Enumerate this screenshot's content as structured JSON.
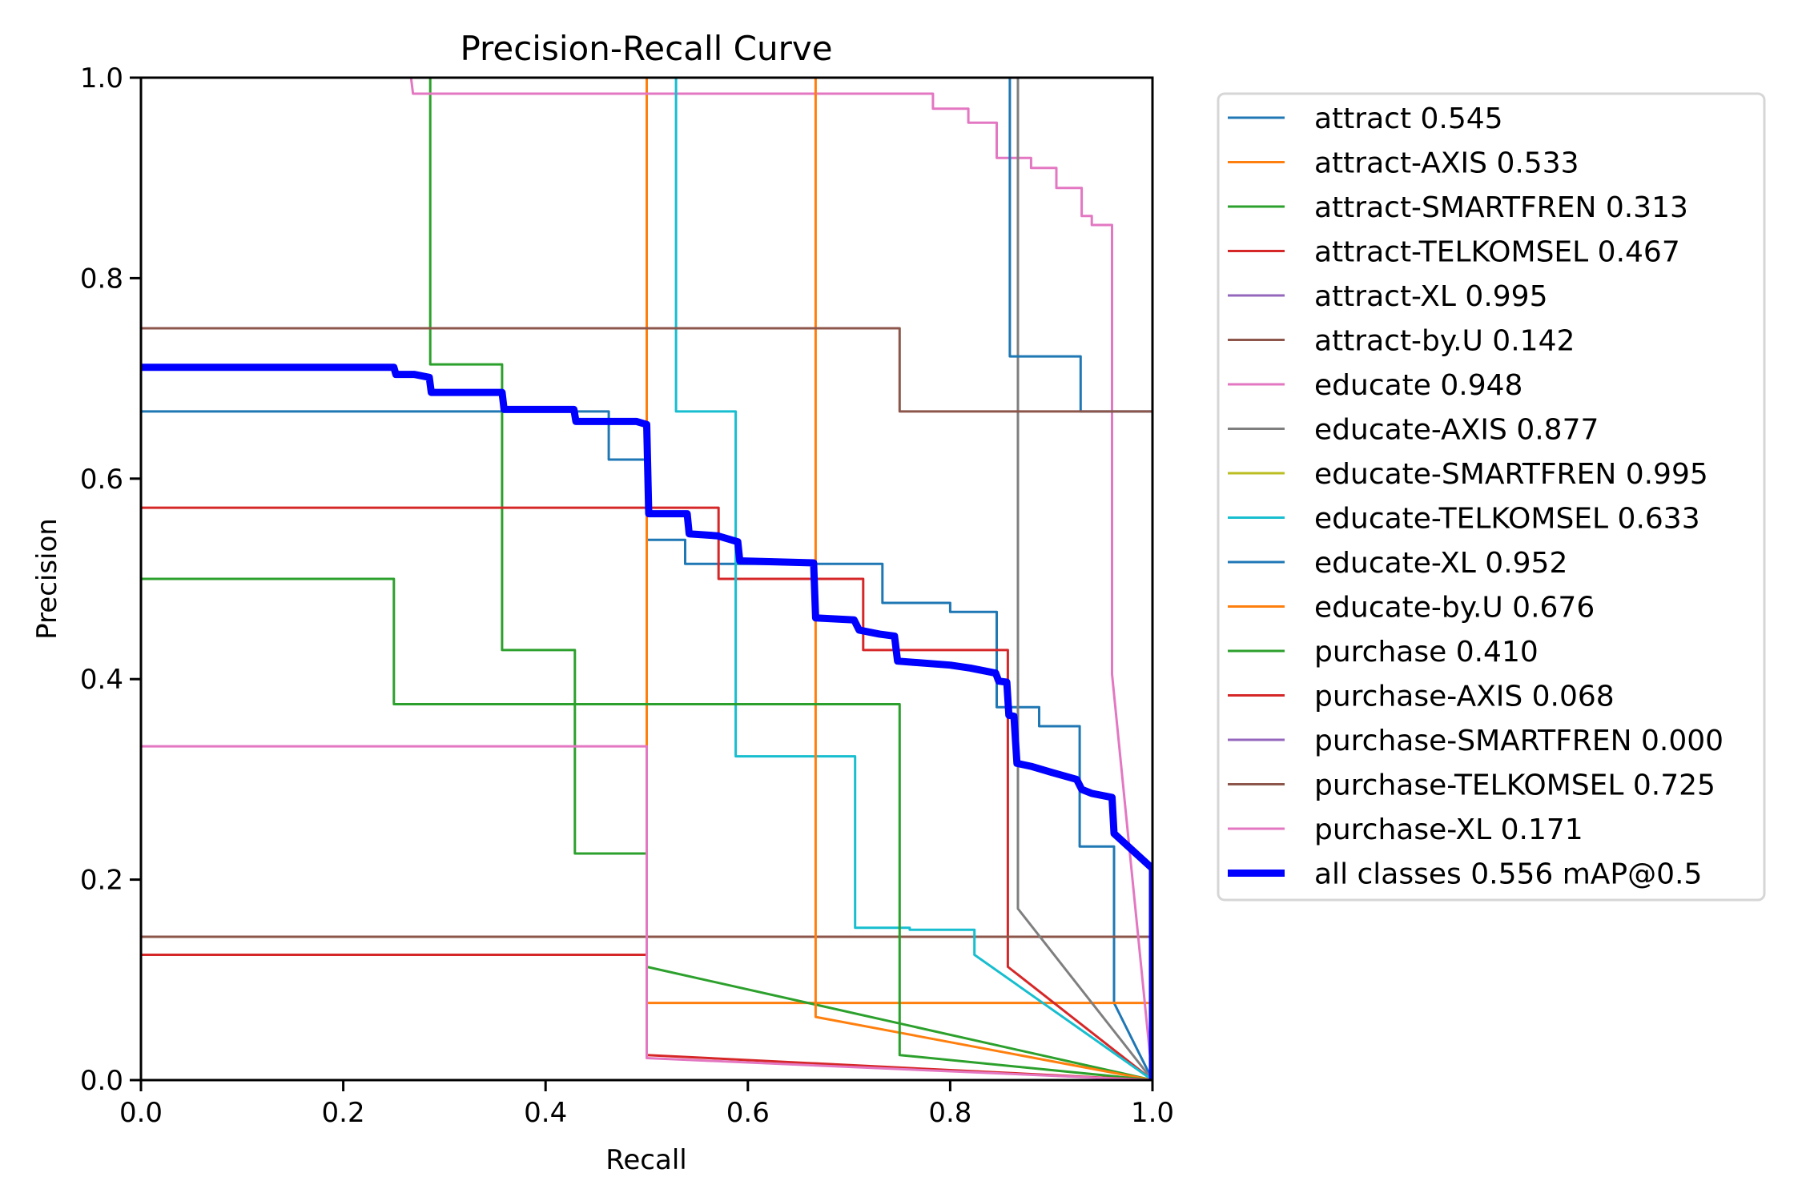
{
  "chart_data": {
    "type": "line",
    "title": "Precision-Recall Curve",
    "xlabel": "Recall",
    "ylabel": "Precision",
    "xlim": [
      0,
      1
    ],
    "ylim": [
      0,
      1
    ],
    "xticks": [
      "0.0",
      "0.2",
      "0.4",
      "0.6",
      "0.8",
      "1.0"
    ],
    "yticks": [
      "0.0",
      "0.2",
      "0.4",
      "0.6",
      "0.8",
      "1.0"
    ],
    "grid": false,
    "legend_position": "outside-top-right",
    "series": [
      {
        "name": "attract",
        "ap": "0.545",
        "label": "attract 0.545",
        "color": "#1f77b4",
        "width": "thin",
        "points": [
          [
            0,
            0.667
          ],
          [
            0.4625,
            0.667
          ],
          [
            0.4625,
            0.619
          ],
          [
            0.5,
            0.619
          ],
          [
            0.5,
            0.539
          ],
          [
            0.538,
            0.539
          ],
          [
            0.538,
            0.515
          ],
          [
            0.733,
            0.515
          ],
          [
            0.733,
            0.476
          ],
          [
            0.8,
            0.476
          ],
          [
            0.8,
            0.467
          ],
          [
            0.846,
            0.467
          ],
          [
            0.846,
            0.372
          ],
          [
            0.888,
            0.372
          ],
          [
            0.888,
            0.353
          ],
          [
            0.928,
            0.353
          ],
          [
            0.928,
            0.233
          ],
          [
            0.962,
            0.233
          ],
          [
            0.962,
            0.077
          ],
          [
            1,
            0.0
          ]
        ]
      },
      {
        "name": "attract-AXIS",
        "ap": "0.533",
        "label": "attract-AXIS 0.533",
        "color": "#ff7f0e",
        "width": "thin",
        "points": [
          [
            0.5,
            1.0
          ],
          [
            0.5,
            0.077
          ],
          [
            1,
            0.077
          ],
          [
            1,
            0.0
          ]
        ]
      },
      {
        "name": "attract-SMARTFREN",
        "ap": "0.313",
        "label": "attract-SMARTFREN 0.313",
        "color": "#2ca02c",
        "width": "thin",
        "points": [
          [
            0.286,
            1.0
          ],
          [
            0.286,
            0.714
          ],
          [
            0.357,
            0.714
          ],
          [
            0.357,
            0.429
          ],
          [
            0.429,
            0.429
          ],
          [
            0.429,
            0.226
          ],
          [
            0.5,
            0.226
          ],
          [
            0.5,
            0.113
          ],
          [
            1,
            0.0
          ]
        ]
      },
      {
        "name": "attract-TELKOMSEL",
        "ap": "0.467",
        "label": "attract-TELKOMSEL 0.467",
        "color": "#d62728",
        "width": "thin",
        "points": [
          [
            0,
            0.571
          ],
          [
            0.571,
            0.571
          ],
          [
            0.571,
            0.5
          ],
          [
            0.714,
            0.5
          ],
          [
            0.714,
            0.429
          ],
          [
            0.857,
            0.429
          ],
          [
            0.857,
            0.113
          ],
          [
            1,
            0.0
          ]
        ]
      },
      {
        "name": "attract-XL",
        "ap": "0.995",
        "label": "attract-XL 0.995",
        "color": "#9467bd",
        "width": "thin",
        "points": [
          [
            0,
            1.0
          ],
          [
            1,
            1.0
          ],
          [
            1,
            0.0
          ]
        ]
      },
      {
        "name": "attract-by.U",
        "ap": "0.142",
        "label": "attract-by.U 0.142",
        "color": "#8c564b",
        "width": "thin",
        "points": [
          [
            0,
            0.143
          ],
          [
            1,
            0.143
          ],
          [
            1,
            0.0
          ]
        ]
      },
      {
        "name": "educate",
        "ap": "0.948",
        "label": "educate 0.948",
        "color": "#e377c2",
        "width": "thin",
        "points": [
          [
            0.267,
            1.0
          ],
          [
            0.269,
            0.984
          ],
          [
            0.783,
            0.984
          ],
          [
            0.783,
            0.969
          ],
          [
            0.818,
            0.969
          ],
          [
            0.818,
            0.955
          ],
          [
            0.846,
            0.955
          ],
          [
            0.846,
            0.92
          ],
          [
            0.88,
            0.92
          ],
          [
            0.88,
            0.91
          ],
          [
            0.905,
            0.91
          ],
          [
            0.905,
            0.89
          ],
          [
            0.93,
            0.89
          ],
          [
            0.93,
            0.862
          ],
          [
            0.94,
            0.862
          ],
          [
            0.94,
            0.853
          ],
          [
            0.96,
            0.853
          ],
          [
            0.96,
            0.405
          ],
          [
            1,
            0.0
          ]
        ]
      },
      {
        "name": "educate-AXIS",
        "ap": "0.877",
        "label": "educate-AXIS 0.877",
        "color": "#7f7f7f",
        "width": "thin",
        "points": [
          [
            0.867,
            1.0
          ],
          [
            0.867,
            0.171
          ],
          [
            1,
            0.0
          ]
        ]
      },
      {
        "name": "educate-SMARTFREN",
        "ap": "0.995",
        "label": "educate-SMARTFREN 0.995",
        "color": "#bcbd22",
        "width": "thin",
        "points": [
          [
            0,
            1.0
          ],
          [
            1,
            1.0
          ],
          [
            1,
            0.0
          ]
        ]
      },
      {
        "name": "educate-TELKOMSEL",
        "ap": "0.633",
        "label": "educate-TELKOMSEL 0.633",
        "color": "#17becf",
        "width": "thin",
        "points": [
          [
            0.529,
            1.0
          ],
          [
            0.529,
            0.667
          ],
          [
            0.588,
            0.667
          ],
          [
            0.588,
            0.323
          ],
          [
            0.706,
            0.323
          ],
          [
            0.706,
            0.152
          ],
          [
            0.76,
            0.152
          ],
          [
            0.76,
            0.15
          ],
          [
            0.824,
            0.15
          ],
          [
            0.824,
            0.125
          ],
          [
            1,
            0.0
          ]
        ]
      },
      {
        "name": "educate-XL",
        "ap": "0.952",
        "label": "educate-XL 0.952",
        "color": "#1f77b4",
        "width": "thin",
        "points": [
          [
            0.859,
            1.0
          ],
          [
            0.859,
            0.722
          ],
          [
            0.929,
            0.722
          ],
          [
            0.929,
            0.667
          ],
          [
            1,
            0.667
          ],
          [
            1,
            0.0
          ]
        ]
      },
      {
        "name": "educate-by.U",
        "ap": "0.676",
        "label": "educate-by.U 0.676",
        "color": "#ff7f0e",
        "width": "thin",
        "points": [
          [
            0.667,
            1.0
          ],
          [
            0.667,
            0.063
          ],
          [
            1,
            0.0
          ]
        ]
      },
      {
        "name": "purchase",
        "ap": "0.410",
        "label": "purchase 0.410",
        "color": "#2ca02c",
        "width": "thin",
        "points": [
          [
            0,
            0.5
          ],
          [
            0.25,
            0.5
          ],
          [
            0.25,
            0.375
          ],
          [
            0.75,
            0.375
          ],
          [
            0.75,
            0.025
          ],
          [
            1,
            0.0
          ]
        ]
      },
      {
        "name": "purchase-AXIS",
        "ap": "0.068",
        "label": "purchase-AXIS 0.068",
        "color": "#d62728",
        "width": "thin",
        "points": [
          [
            0,
            0.125
          ],
          [
            0.5,
            0.125
          ],
          [
            0.5,
            0.025
          ],
          [
            1,
            0.0
          ]
        ]
      },
      {
        "name": "purchase-SMARTFREN",
        "ap": "0.000",
        "label": "purchase-SMARTFREN 0.000",
        "color": "#9467bd",
        "width": "thin",
        "points": [
          [
            0,
            0.0
          ],
          [
            1,
            0.0
          ]
        ]
      },
      {
        "name": "purchase-TELKOMSEL",
        "ap": "0.725",
        "label": "purchase-TELKOMSEL 0.725",
        "color": "#8c564b",
        "width": "thin",
        "points": [
          [
            0,
            0.75
          ],
          [
            0.75,
            0.75
          ],
          [
            0.75,
            0.667
          ],
          [
            1,
            0.667
          ],
          [
            1,
            0.0
          ]
        ]
      },
      {
        "name": "purchase-XL",
        "ap": "0.171",
        "label": "purchase-XL 0.171",
        "color": "#e377c2",
        "width": "thin",
        "points": [
          [
            0,
            0.333
          ],
          [
            0.5,
            0.333
          ],
          [
            0.5,
            0.022
          ],
          [
            1,
            0.0
          ]
        ]
      },
      {
        "name": "all classes",
        "ap": "0.556",
        "label": "all classes 0.556 mAP@0.5",
        "color": "#0000ff",
        "width": "thick",
        "points": [
          [
            0,
            0.711
          ],
          [
            0.25,
            0.711
          ],
          [
            0.252,
            0.704
          ],
          [
            0.27,
            0.704
          ],
          [
            0.285,
            0.701
          ],
          [
            0.287,
            0.686
          ],
          [
            0.357,
            0.686
          ],
          [
            0.359,
            0.669
          ],
          [
            0.428,
            0.669
          ],
          [
            0.43,
            0.657
          ],
          [
            0.49,
            0.657
          ],
          [
            0.5,
            0.654
          ],
          [
            0.502,
            0.565
          ],
          [
            0.54,
            0.565
          ],
          [
            0.542,
            0.545
          ],
          [
            0.57,
            0.543
          ],
          [
            0.59,
            0.537
          ],
          [
            0.592,
            0.518
          ],
          [
            0.665,
            0.516
          ],
          [
            0.667,
            0.461
          ],
          [
            0.705,
            0.459
          ],
          [
            0.71,
            0.449
          ],
          [
            0.73,
            0.445
          ],
          [
            0.745,
            0.443
          ],
          [
            0.748,
            0.418
          ],
          [
            0.8,
            0.414
          ],
          [
            0.82,
            0.411
          ],
          [
            0.845,
            0.406
          ],
          [
            0.848,
            0.398
          ],
          [
            0.856,
            0.397
          ],
          [
            0.858,
            0.364
          ],
          [
            0.863,
            0.363
          ],
          [
            0.866,
            0.316
          ],
          [
            0.88,
            0.313
          ],
          [
            0.9,
            0.307
          ],
          [
            0.925,
            0.3
          ],
          [
            0.93,
            0.29
          ],
          [
            0.94,
            0.286
          ],
          [
            0.96,
            0.282
          ],
          [
            0.962,
            0.246
          ],
          [
            1,
            0.211
          ],
          [
            1,
            0.0
          ]
        ]
      }
    ]
  }
}
